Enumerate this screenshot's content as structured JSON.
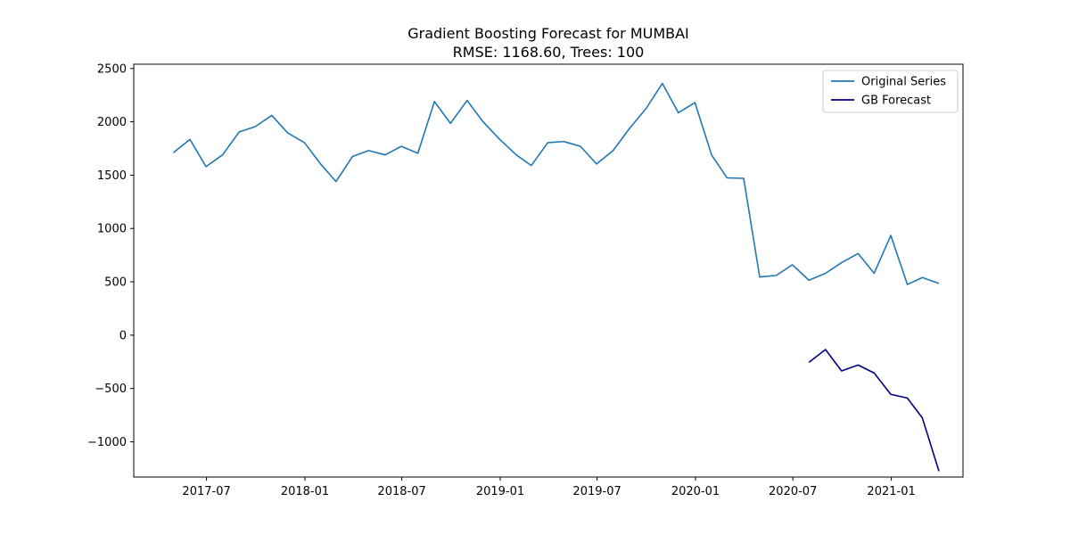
{
  "chart_data": {
    "type": "line",
    "title": "Gradient Boosting Forecast for MUMBAI",
    "subtitle": "RMSE: 1168.60, Trees: 100",
    "xlabel": "",
    "ylabel": "",
    "ylim": [
      -1330,
      2540
    ],
    "xlim": [
      "2017-02-15",
      "2021-05-15"
    ],
    "y_ticks": [
      2500,
      2000,
      1500,
      1000,
      500,
      0,
      -500,
      -1000
    ],
    "y_tick_labels": [
      "2500",
      "2000",
      "1500",
      "1000",
      "500",
      "0",
      "−500",
      "−1000"
    ],
    "x_ticks": [
      "2017-07-01",
      "2018-01-01",
      "2018-07-01",
      "2019-01-01",
      "2019-07-01",
      "2020-01-01",
      "2020-07-01",
      "2021-01-01"
    ],
    "x_tick_labels": [
      "2017-07",
      "2018-01",
      "2018-07",
      "2019-01",
      "2019-07",
      "2020-01",
      "2020-07",
      "2021-01"
    ],
    "grid": false,
    "legend_position": "top-right",
    "series": [
      {
        "name": "Original Series",
        "color": "#1f77b4",
        "x": [
          "2017-04-30",
          "2017-05-31",
          "2017-06-30",
          "2017-07-31",
          "2017-08-31",
          "2017-09-30",
          "2017-10-31",
          "2017-11-30",
          "2017-12-31",
          "2018-01-31",
          "2018-02-28",
          "2018-03-31",
          "2018-04-30",
          "2018-05-31",
          "2018-06-30",
          "2018-07-31",
          "2018-08-31",
          "2018-09-30",
          "2018-10-31",
          "2018-11-30",
          "2018-12-31",
          "2019-01-31",
          "2019-02-28",
          "2019-03-31",
          "2019-04-30",
          "2019-05-31",
          "2019-06-30",
          "2019-07-31",
          "2019-08-31",
          "2019-09-30",
          "2019-10-31",
          "2019-11-30",
          "2019-12-31",
          "2020-01-31",
          "2020-02-29",
          "2020-03-31",
          "2020-04-30",
          "2020-05-31",
          "2020-06-30",
          "2020-07-31",
          "2020-08-31",
          "2020-09-30",
          "2020-10-31",
          "2020-11-30",
          "2020-12-31",
          "2021-01-31",
          "2021-02-28",
          "2021-03-31"
        ],
        "y": [
          1710,
          1835,
          1580,
          1690,
          1905,
          1955,
          2060,
          1895,
          1805,
          1600,
          1440,
          1675,
          1730,
          1690,
          1770,
          1705,
          2190,
          1985,
          2200,
          2000,
          1835,
          1690,
          1590,
          1805,
          1815,
          1770,
          1605,
          1730,
          1940,
          2120,
          2360,
          2085,
          2180,
          1690,
          1475,
          1470,
          545,
          560,
          660,
          515,
          580,
          680,
          765,
          580,
          935,
          475,
          540,
          485
        ]
      },
      {
        "name": "GB Forecast",
        "color": "#000080",
        "x": [
          "2020-07-31",
          "2020-08-31",
          "2020-09-30",
          "2020-10-31",
          "2020-11-30",
          "2020-12-31",
          "2021-01-31",
          "2021-02-28",
          "2021-03-31"
        ],
        "y": [
          -255,
          -135,
          -335,
          -280,
          -355,
          -555,
          -590,
          -775,
          -1275
        ]
      }
    ]
  }
}
